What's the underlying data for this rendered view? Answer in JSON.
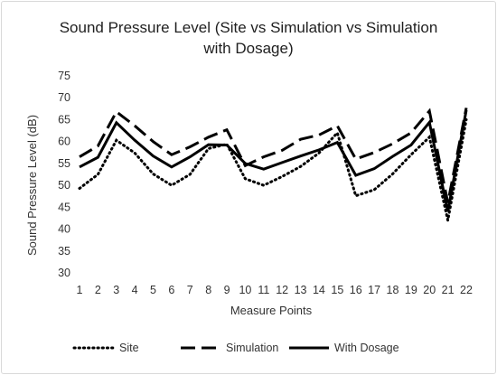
{
  "chart_data": {
    "type": "line",
    "title_line1": "Sound Pressure Level (Site vs Simulation vs Simulation",
    "title_line2": "with Dosage)",
    "xlabel": "Measure Points",
    "ylabel": "Sound Pressure Level (dB)",
    "ylim": [
      30,
      75
    ],
    "ytick_step": 5,
    "grid": false,
    "legend_position": "bottom",
    "categories": [
      "1",
      "2",
      "3",
      "4",
      "5",
      "6",
      "7",
      "8",
      "9",
      "10",
      "11",
      "12",
      "13",
      "14",
      "15",
      "16",
      "17",
      "18",
      "19",
      "20",
      "21",
      "22"
    ],
    "yticks": [
      "30",
      "35",
      "40",
      "45",
      "50",
      "55",
      "60",
      "65",
      "70",
      "75"
    ],
    "series": [
      {
        "name": "Site",
        "style": "dotted",
        "values": [
          49.3,
          52.5,
          60.3,
          57.4,
          52.6,
          50.0,
          52.5,
          58.4,
          59.4,
          51.5,
          50.0,
          52.0,
          54.3,
          57.4,
          62.0,
          47.6,
          49.0,
          52.6,
          57.0,
          61.0,
          42.0,
          65.0
        ]
      },
      {
        "name": "Simulation",
        "style": "dashed",
        "values": [
          56.5,
          59.0,
          66.8,
          63.6,
          60.0,
          57.0,
          58.8,
          61.0,
          62.7,
          54.5,
          56.5,
          58.0,
          60.5,
          61.5,
          63.6,
          56.0,
          57.5,
          59.5,
          62.0,
          67.0,
          46.0,
          67.7
        ]
      },
      {
        "name": "With Dosage",
        "style": "solid",
        "values": [
          54.2,
          56.4,
          64.3,
          60.3,
          56.7,
          54.2,
          56.5,
          59.3,
          59.2,
          55.0,
          53.7,
          55.2,
          56.7,
          58.1,
          59.8,
          52.3,
          53.8,
          56.6,
          59.2,
          64.4,
          44.0,
          67.2
        ]
      }
    ]
  }
}
